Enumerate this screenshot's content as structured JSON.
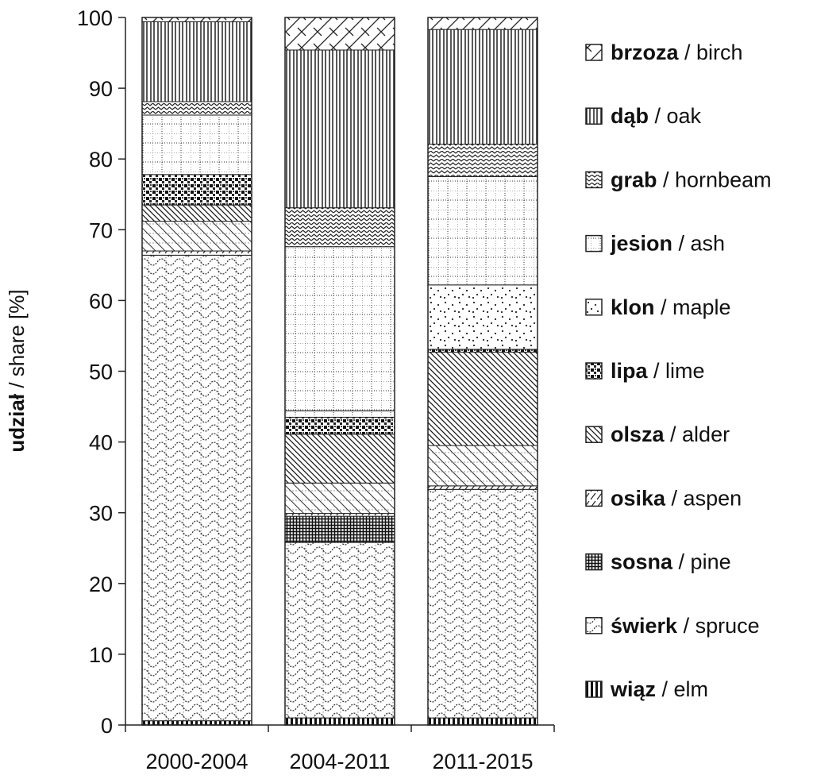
{
  "chart_data": {
    "type": "bar",
    "stacked": true,
    "title": "",
    "xlabel": "",
    "ylabel_bold": "udział",
    "ylabel_rest": " / share [%]",
    "ylim": [
      0,
      100
    ],
    "yticks": [
      0,
      10,
      20,
      30,
      40,
      50,
      60,
      70,
      80,
      90,
      100
    ],
    "grid": false,
    "legend_position": "right",
    "categories": [
      "2000-2004",
      "2004-2011",
      "2011-2015"
    ],
    "series": [
      {
        "name_bold": "wiąz",
        "name_rest": " / elm",
        "pattern": "elm",
        "values": [
          0.6,
          1.0,
          1.0
        ]
      },
      {
        "name_bold": "świerk",
        "name_rest": " / spruce",
        "pattern": "spruce",
        "values": [
          65.8,
          24.8,
          32.3
        ]
      },
      {
        "name_bold": "sosna",
        "name_rest": " / pine",
        "pattern": "pine",
        "values": [
          0.0,
          3.7,
          0.0
        ]
      },
      {
        "name_bold": "osika",
        "name_rest": " / aspen",
        "pattern": "aspen",
        "values": [
          0.6,
          0.4,
          0.5
        ]
      },
      {
        "name_bold": "olsza",
        "name_rest": " / alder",
        "pattern": "alder_light",
        "values": [
          4.2,
          4.3,
          5.7
        ]
      },
      {
        "name_bold": "olsza",
        "name_rest": " / alder",
        "pattern": "alder",
        "values": [
          2.3,
          6.9,
          13.2
        ],
        "legend": false
      },
      {
        "name_bold": "lipa",
        "name_rest": " / lime",
        "pattern": "lime",
        "values": [
          4.3,
          2.4,
          0.4
        ]
      },
      {
        "name_bold": "jesion",
        "name_rest": " / ash",
        "pattern": "ash",
        "values": [
          0.0,
          0.9,
          0.0
        ]
      },
      {
        "name_bold": "klon",
        "name_rest": " / maple",
        "pattern": "maple",
        "values": [
          0.0,
          0.0,
          9.1
        ]
      },
      {
        "name_bold": "jesion",
        "name_rest": " / ash",
        "pattern": "ash",
        "values": [
          8.4,
          23.2,
          15.3
        ],
        "legend": false
      },
      {
        "name_bold": "grab",
        "name_rest": " / hornbeam",
        "pattern": "hornbeam",
        "values": [
          1.9,
          5.5,
          4.6
        ]
      },
      {
        "name_bold": "dąb",
        "name_rest": " / oak",
        "pattern": "oak",
        "values": [
          11.3,
          22.3,
          16.2
        ]
      },
      {
        "name_bold": "brzoza",
        "name_rest": " / birch",
        "pattern": "birch",
        "values": [
          0.6,
          4.6,
          1.7
        ]
      }
    ],
    "legend": [
      {
        "bold": "brzoza",
        "rest": " / birch",
        "pattern": "birch"
      },
      {
        "bold": "dąb",
        "rest": " / oak",
        "pattern": "oak"
      },
      {
        "bold": "grab",
        "rest": " / hornbeam",
        "pattern": "hornbeam"
      },
      {
        "bold": "jesion",
        "rest": " / ash",
        "pattern": "ash"
      },
      {
        "bold": "klon",
        "rest": " / maple",
        "pattern": "maple"
      },
      {
        "bold": "lipa",
        "rest": " / lime",
        "pattern": "lime"
      },
      {
        "bold": "olsza",
        "rest": " / alder",
        "pattern": "alder"
      },
      {
        "bold": "osika",
        "rest": " / aspen",
        "pattern": "aspen"
      },
      {
        "bold": "sosna",
        "rest": " / pine",
        "pattern": "pine"
      },
      {
        "bold": "świerk",
        "rest": " / spruce",
        "pattern": "spruce"
      },
      {
        "bold": "wiąz",
        "rest": " / elm",
        "pattern": "elm"
      }
    ]
  }
}
